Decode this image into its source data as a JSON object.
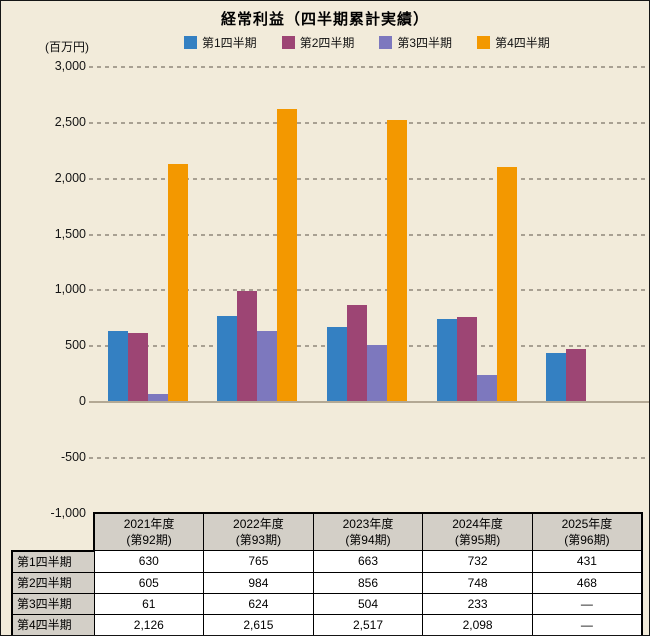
{
  "title": "経常利益（四半期累計実績）",
  "unit_label": "(百万円)",
  "colors": {
    "q1": "#3480C2",
    "q2": "#9D4574",
    "q3": "#7D78BE",
    "q4": "#F39800",
    "background": "#F2EBDA",
    "gridline": "#A8A092",
    "zero_axis": "#B3A894",
    "table_header_bg": "#D3CFC7"
  },
  "chart_data": {
    "type": "bar",
    "title": "経常利益（四半期累計実績）",
    "ylabel": "(百万円)",
    "ylim": [
      -1000,
      3000
    ],
    "ytick_interval": 500,
    "yticks": [
      {
        "label": "3,000",
        "value": 3000
      },
      {
        "label": "2,500",
        "value": 2500
      },
      {
        "label": "2,000",
        "value": 2000
      },
      {
        "label": "1,500",
        "value": 1500
      },
      {
        "label": "1,000",
        "value": 1000
      },
      {
        "label": "500",
        "value": 500
      },
      {
        "label": "0",
        "value": 0
      },
      {
        "label": "-500",
        "value": -500
      },
      {
        "label": "-1,000",
        "value": -1000
      }
    ],
    "grid": "horizontal-dotted",
    "legend_position": "top",
    "categories": [
      "2021年度",
      "2022年度",
      "2023年度",
      "2024年度",
      "2025年度"
    ],
    "category_sublabels": [
      "(第92期)",
      "(第93期)",
      "(第94期)",
      "(第95期)",
      "(第96期)"
    ],
    "series": [
      {
        "name": "第1四半期",
        "color": "#3480C2",
        "values": [
          630,
          765,
          663,
          732,
          431
        ]
      },
      {
        "name": "第2四半期",
        "color": "#9D4574",
        "values": [
          605,
          984,
          856,
          748,
          468
        ]
      },
      {
        "name": "第3四半期",
        "color": "#7D78BE",
        "values": [
          61,
          624,
          504,
          233,
          null
        ]
      },
      {
        "name": "第4四半期",
        "color": "#F39800",
        "values": [
          2126,
          2615,
          2517,
          2098,
          null
        ]
      }
    ]
  },
  "table": {
    "col_headers": [
      {
        "line1": "2021年度",
        "line2": "(第92期)"
      },
      {
        "line1": "2022年度",
        "line2": "(第93期)"
      },
      {
        "line1": "2023年度",
        "line2": "(第94期)"
      },
      {
        "line1": "2024年度",
        "line2": "(第95期)"
      },
      {
        "line1": "2025年度",
        "line2": "(第96期)"
      }
    ],
    "rows": [
      {
        "label": "第1四半期",
        "values": [
          "630",
          "765",
          "663",
          "732",
          "431"
        ]
      },
      {
        "label": "第2四半期",
        "values": [
          "605",
          "984",
          "856",
          "748",
          "468"
        ]
      },
      {
        "label": "第3四半期",
        "values": [
          "61",
          "624",
          "504",
          "233",
          "—"
        ]
      },
      {
        "label": "第4四半期",
        "values": [
          "2,126",
          "2,615",
          "2,517",
          "2,098",
          "—"
        ]
      }
    ]
  }
}
